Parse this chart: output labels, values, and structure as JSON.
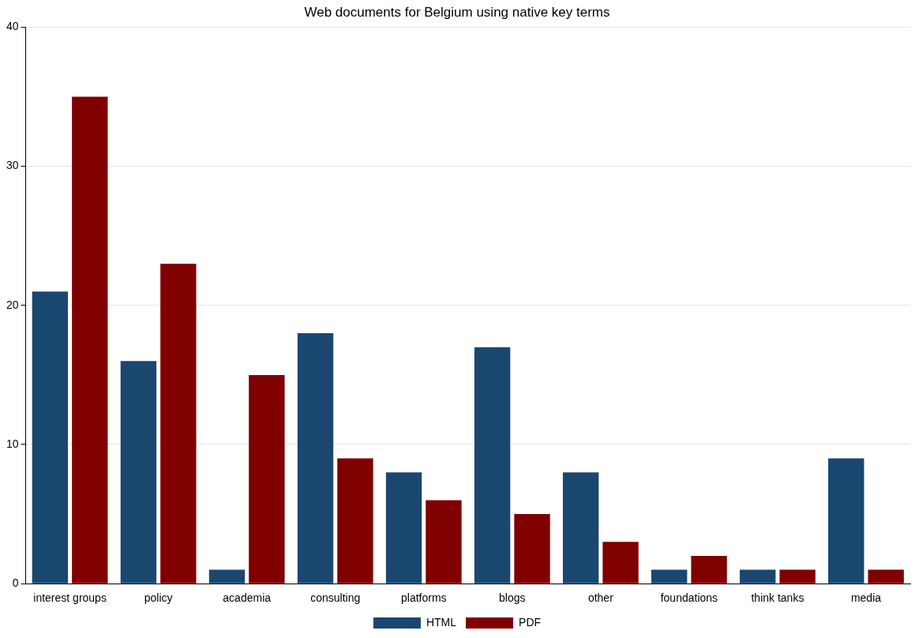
{
  "chart_data": {
    "type": "bar",
    "title": "Web documents for Belgium using native key terms",
    "categories": [
      "interest groups",
      "policy",
      "academia",
      "consulting",
      "platforms",
      "blogs",
      "other",
      "foundations",
      "think tanks",
      "media"
    ],
    "series": [
      {
        "name": "HTML",
        "color": "#1a476f",
        "values": [
          21,
          16,
          1,
          18,
          8,
          17,
          8,
          1,
          1,
          9
        ]
      },
      {
        "name": "PDF",
        "color": "#800000",
        "values": [
          35,
          23,
          15,
          9,
          6,
          5,
          3,
          2,
          1,
          1
        ]
      }
    ],
    "ylim": [
      0,
      40
    ],
    "yticks": [
      0,
      10,
      20,
      30,
      40
    ],
    "grid": "y",
    "legend": "bottom"
  }
}
